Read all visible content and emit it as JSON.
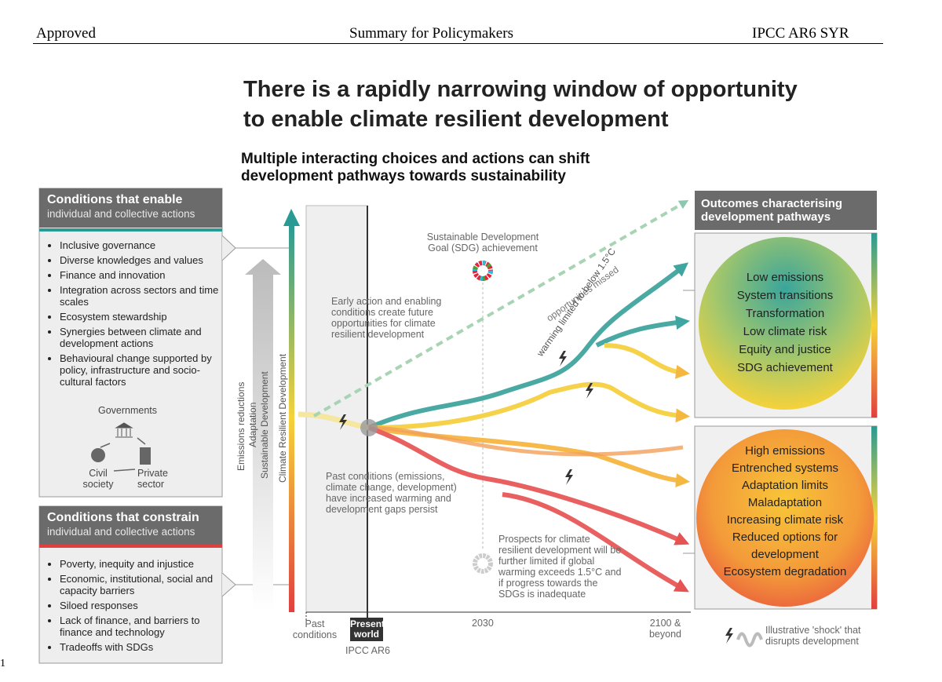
{
  "header": {
    "left": "Approved",
    "center": "Summary for Policymakers",
    "right": "IPCC AR6 SYR"
  },
  "title": [
    "There is a rapidly narrowing window of opportunity",
    "to enable climate resilient development"
  ],
  "subtitle": [
    "Multiple interacting choices and actions can shift",
    "development pathways towards sustainability"
  ],
  "enabling": {
    "title": "Conditions that enable",
    "subtitle": "individual and collective actions",
    "items": [
      "Inclusive governance",
      "Diverse knowledges and values",
      "Finance and innovation",
      "Integration across sectors and time scales",
      "Ecosystem stewardship",
      "Synergies between climate and development actions",
      "Behavioural change supported by policy, infrastructure and socio-cultural factors"
    ],
    "actors": {
      "top": "Governments",
      "left": "Civil society",
      "right": "Private sector"
    }
  },
  "constraining": {
    "title": "Conditions that constrain",
    "subtitle": "individual and collective actions",
    "items": [
      "Poverty, inequity and injustice",
      "Economic, institutional, social and capacity barriers",
      "Siloed responses",
      "Lack of finance, and barriers to finance and technology",
      "Tradeoffs with SDGs"
    ]
  },
  "axis": {
    "y_labels": [
      "Emissions reductions",
      "Adaptation",
      "Sustainable Development",
      "Climate Resilient Development"
    ],
    "past": "Past conditions",
    "present": "Present world",
    "present_note": "IPCC AR6",
    "mid": "2030",
    "end": "2100 & beyond"
  },
  "annotations": {
    "sdg": "Sustainable Development Goal (SDG) achievement",
    "early": "Early action and enabling conditions create future opportunities for climate resilient development",
    "missed": "opportunities missed",
    "warming": "warming limited to below 1.5°C",
    "past": "Past conditions (emissions, climate change, development) have increased warming and development gaps persist",
    "prospects": "Prospects for climate resilient development will be further limited if global warming exceeds 1.5°C and if progress towards the SDGs is inadequate"
  },
  "outcomes": {
    "title": "Outcomes characterising development pathways",
    "resilient": [
      "Low emissions",
      "System transitions",
      "Transformation",
      "Low climate risk",
      "Equity and justice",
      "SDG achievement"
    ],
    "unsustainable": [
      "High emissions",
      "Entrenched systems",
      "Adaptation limits",
      "Maladaptation",
      "Increasing climate risk",
      "Reduced options for development",
      "Ecosystem degradation"
    ]
  },
  "legend": "Illustrative 'shock' that disrupts development",
  "page_number": "1"
}
